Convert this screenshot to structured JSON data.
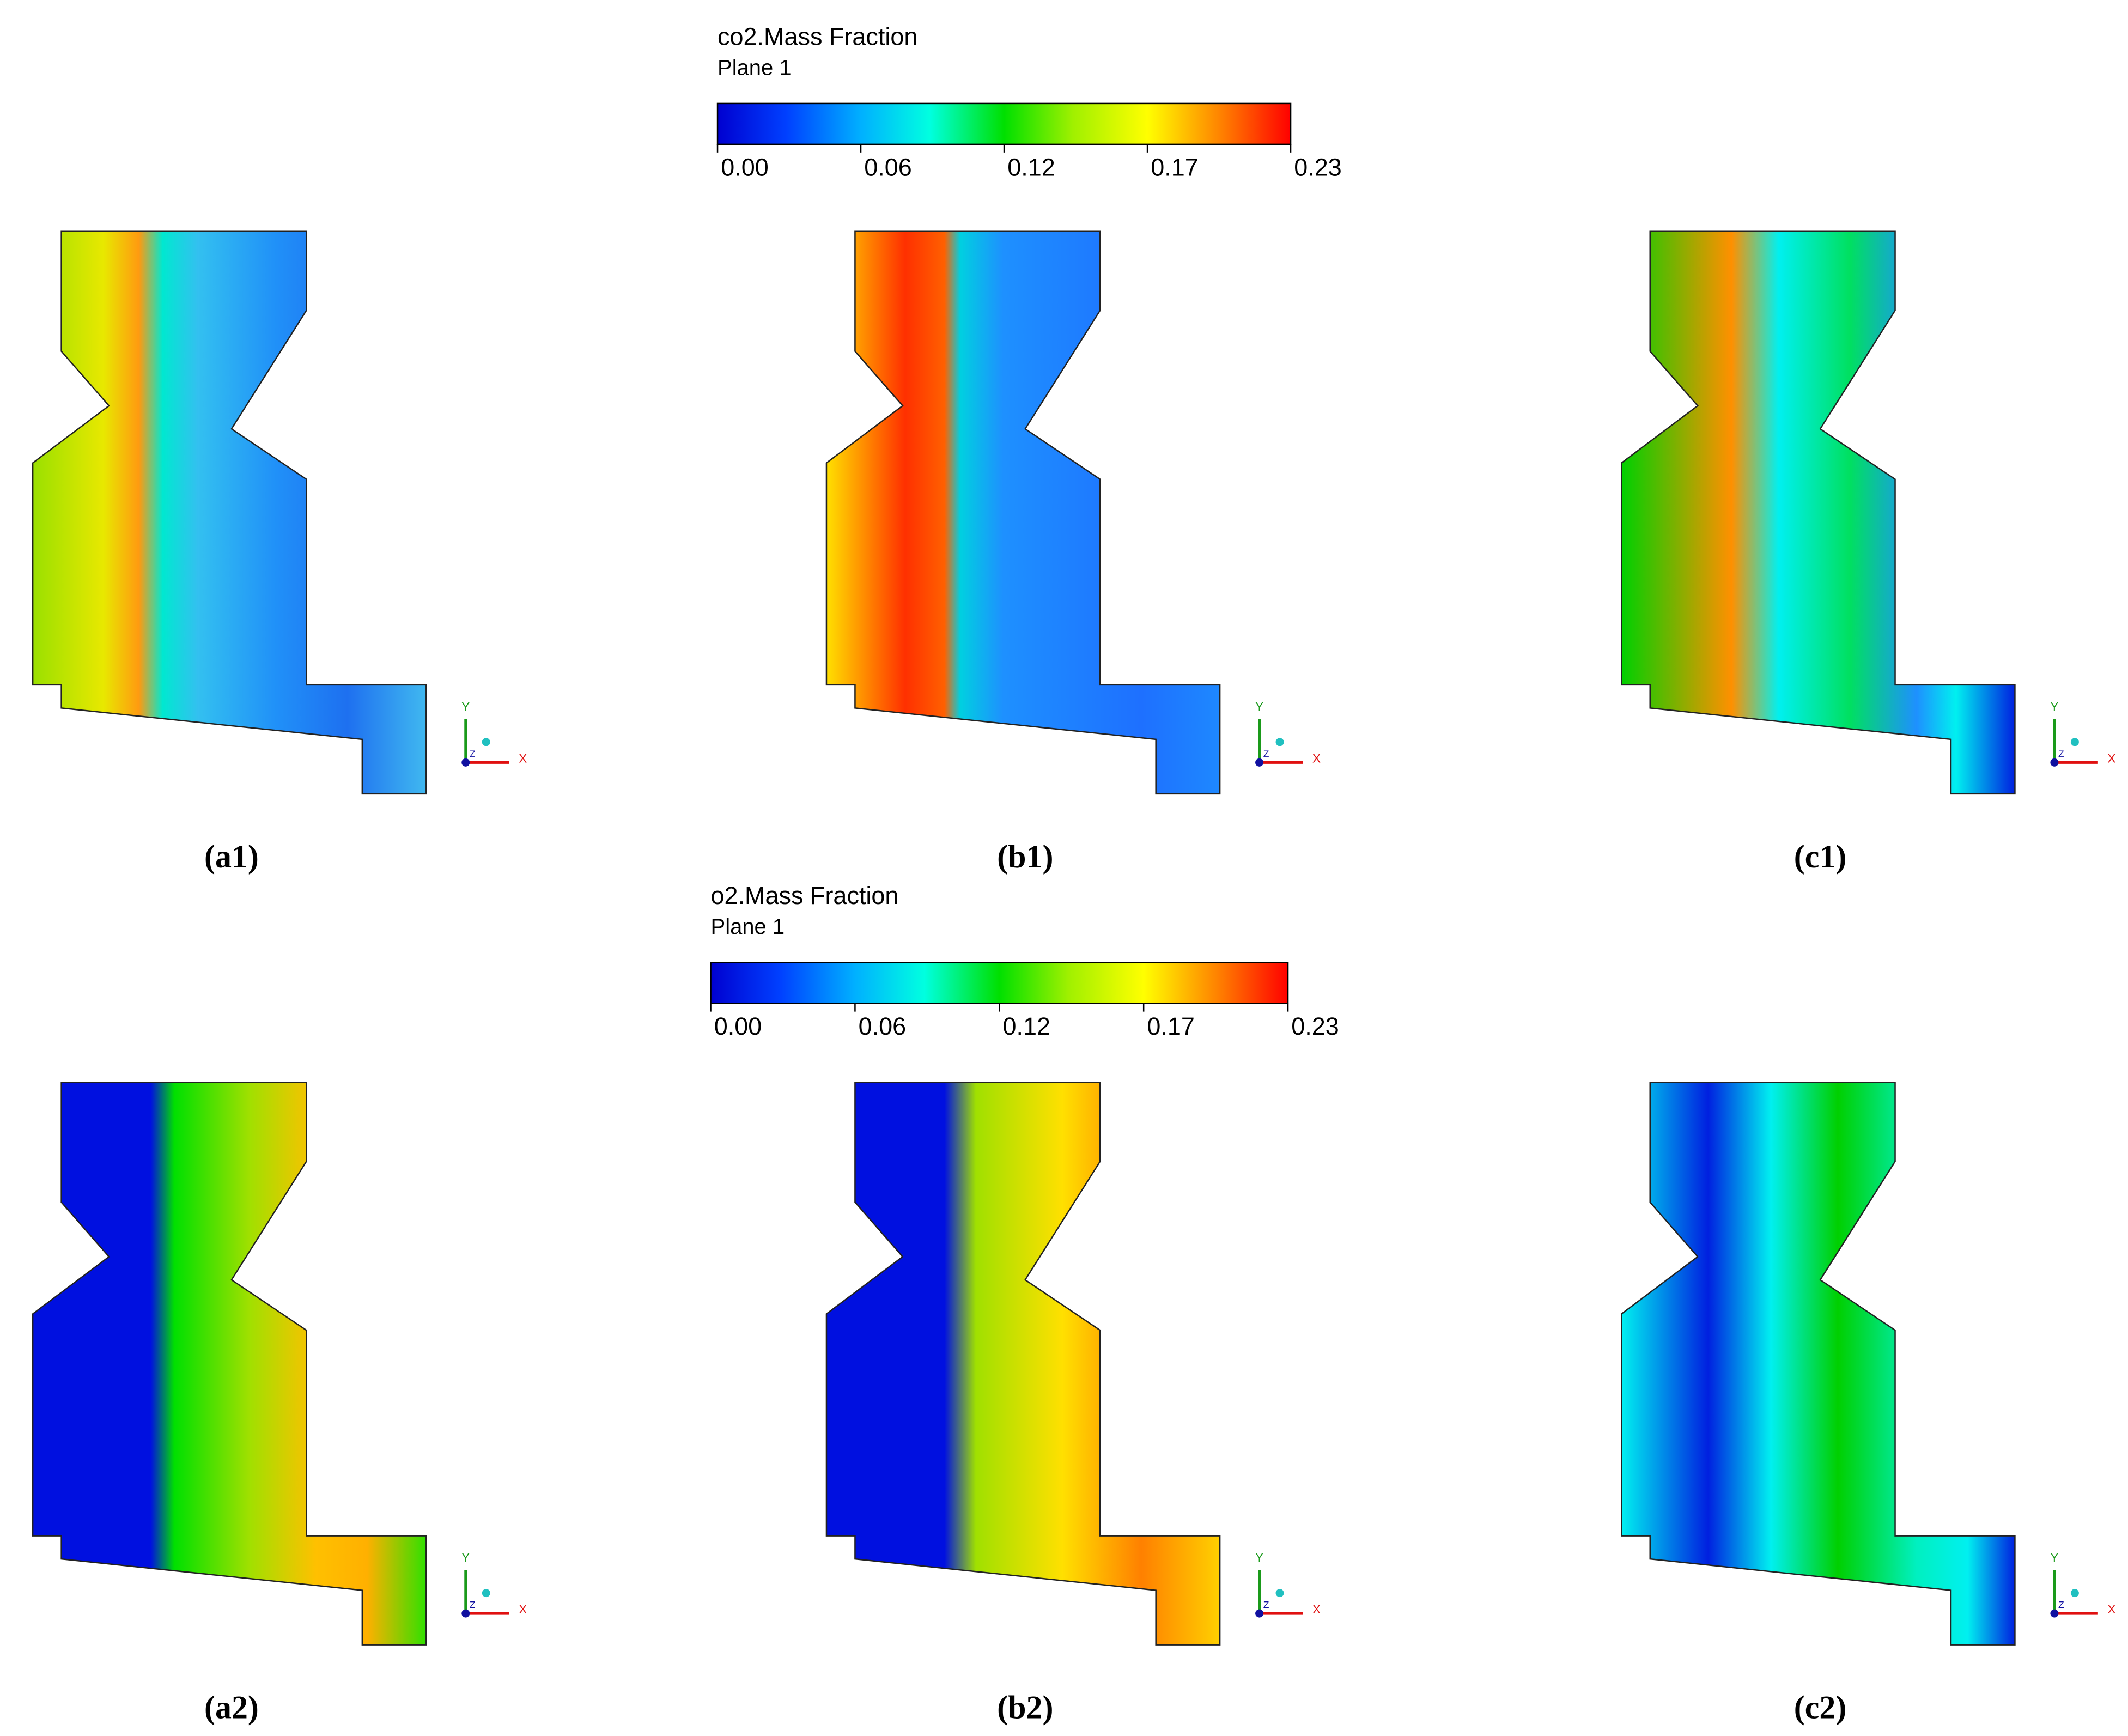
{
  "legends": [
    {
      "title": "co2.Mass Fraction",
      "subtitle": "Plane 1",
      "ticks": [
        "0.00",
        "0.06",
        "0.12",
        "0.17",
        "0.23"
      ]
    },
    {
      "title": "o2.Mass Fraction",
      "subtitle": "Plane 1",
      "ticks": [
        "0.00",
        "0.06",
        "0.12",
        "0.17",
        "0.23"
      ]
    }
  ],
  "panels": [
    {
      "label": "(a1)"
    },
    {
      "label": "(b1)"
    },
    {
      "label": "(c1)"
    },
    {
      "label": "(a2)"
    },
    {
      "label": "(b2)"
    },
    {
      "label": "(c2)"
    }
  ],
  "axes": {
    "x": "X",
    "y": "Y",
    "z": "Z"
  }
}
